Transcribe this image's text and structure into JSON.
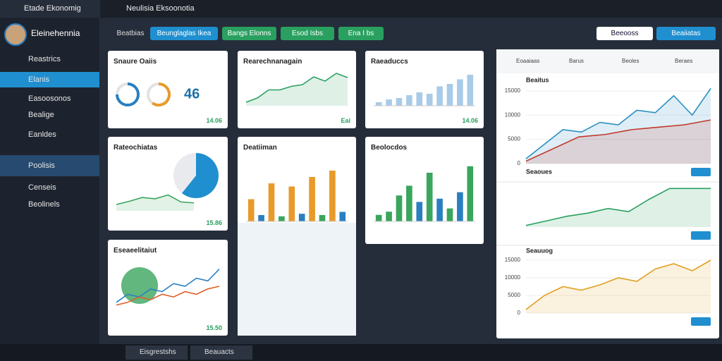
{
  "tabs": [
    "Etade Ekonomig",
    "Neulisia Eksoonotia"
  ],
  "user": "Eleinehennia",
  "sidebar": [
    "Reastrics",
    "Elanis",
    "Easoosonos",
    "Bealige",
    "Eanldes",
    "Poolisis",
    "Censeis",
    "Beolinels"
  ],
  "toolbar": [
    "Beatbias",
    "Beunglaglas Ikea",
    "Bangs Elonns",
    "Esod Isbs",
    "Ena I bs"
  ],
  "actions": [
    "Beeooss",
    "Beaiiatas"
  ],
  "cards": [
    {
      "title": "Snaure Oaiis",
      "footer": "14.06",
      "chart": {
        "type": "gauge",
        "values": [
          75,
          60
        ],
        "colors": [
          "#2a7fc0",
          "#e89a2a"
        ],
        "big": "46"
      }
    },
    {
      "title": "Rateochiatas",
      "footer": "15.86",
      "chart": {
        "type": "line",
        "area": true,
        "ylim": [
          0,
          100
        ],
        "series": [
          {
            "color": "#3aa55d",
            "values": [
              20,
              30,
              42,
              38,
              50,
              28,
              25
            ]
          }
        ]
      }
    },
    {
      "title": "Eseaeelitaiut",
      "footer": "15.50",
      "chart": {
        "type": "line",
        "ylim": [
          0,
          100
        ],
        "series": [
          {
            "color": "#2a7fc0",
            "values": [
              20,
              35,
              30,
              45,
              40,
              55,
              50,
              65,
              60,
              82
            ]
          },
          {
            "color": "#e0602a",
            "values": [
              15,
              20,
              30,
              25,
              35,
              30,
              40,
              35,
              45,
              50
            ]
          }
        ]
      }
    },
    {
      "title": "Rearechnanagain",
      "footer": "Eai",
      "chart": {
        "type": "line",
        "area": true,
        "ylim": [
          0,
          100
        ],
        "series": [
          {
            "color": "#2aa060",
            "values": [
              10,
              22,
              45,
              45,
              55,
              60,
              82,
              70,
              92,
              80
            ]
          }
        ]
      }
    },
    {
      "title": "Deatiiman",
      "chart": {
        "type": "bar",
        "ylim": [
          0,
          100
        ],
        "values": [
          35,
          10,
          60,
          8,
          55,
          12,
          70,
          10,
          80,
          15
        ],
        "colors": [
          "#e89a2a",
          "#2a7fc0",
          "#e89a2a",
          "#3aa55d",
          "#e89a2a",
          "#2a7fc0",
          "#e89a2a",
          "#3aa55d",
          "#e89a2a",
          "#2a7fc0"
        ]
      }
    },
    {
      "title": "Raeaduccs",
      "footer": "14.06",
      "chart": {
        "type": "bar",
        "ylim": [
          0,
          100
        ],
        "values": [
          10,
          18,
          22,
          30,
          38,
          34,
          55,
          62,
          75,
          88
        ],
        "colors": [
          "#a9cbe8",
          "#a9cbe8",
          "#a9cbe8",
          "#a9cbe8",
          "#a9cbe8",
          "#a9cbe8",
          "#a9cbe8",
          "#a9cbe8",
          "#a9cbe8",
          "#a9cbe8"
        ]
      }
    },
    {
      "title": "Beolocdos",
      "chart": {
        "type": "bar",
        "ylim": [
          0,
          100
        ],
        "values": [
          10,
          15,
          40,
          55,
          30,
          75,
          35,
          20,
          45,
          85
        ],
        "colors": [
          "#3aa55d",
          "#3aa55d",
          "#3aa55d",
          "#3aa55d",
          "#2a7fc0",
          "#3aa55d",
          "#2a7fc0",
          "#3aa55d",
          "#2a7fc0",
          "#3aa55d"
        ]
      }
    }
  ],
  "panel_tabs": [
    "Eoaaiaas",
    "Barus",
    "Beoles",
    "Beraes"
  ],
  "panel": [
    {
      "title": "Beaitus",
      "ylim": [
        0,
        16000
      ],
      "yticks": [
        15000,
        10000,
        5000,
        0
      ],
      "series": [
        {
          "color": "#2a8fc0",
          "values": [
            1000,
            4000,
            7000,
            6500,
            8500,
            8000,
            11000,
            10500,
            14000,
            10000,
            15500
          ]
        },
        {
          "color": "#c0392b",
          "values": [
            500,
            3000,
            5500,
            6000,
            7000,
            7500,
            8000,
            9000
          ]
        }
      ]
    },
    {
      "title": "Seaoues",
      "ylim": [
        0,
        16000
      ],
      "yticks": [],
      "series": [
        {
          "color": "#2aa060",
          "values": [
            500,
            2000,
            3500,
            4500,
            6000,
            5000,
            9000,
            12500,
            12500,
            12500
          ]
        }
      ]
    },
    {
      "title": "Seauuog",
      "ylim": [
        0,
        16000
      ],
      "yticks": [
        15000,
        10000,
        5000,
        0
      ],
      "series": [
        {
          "color": "#e0a020",
          "values": [
            1000,
            5000,
            7500,
            6500,
            8000,
            10000,
            9000,
            12500,
            14000,
            12000,
            15000
          ]
        }
      ]
    }
  ],
  "taskbar": [
    "Eisgrestshs",
    "Beauacts"
  ]
}
